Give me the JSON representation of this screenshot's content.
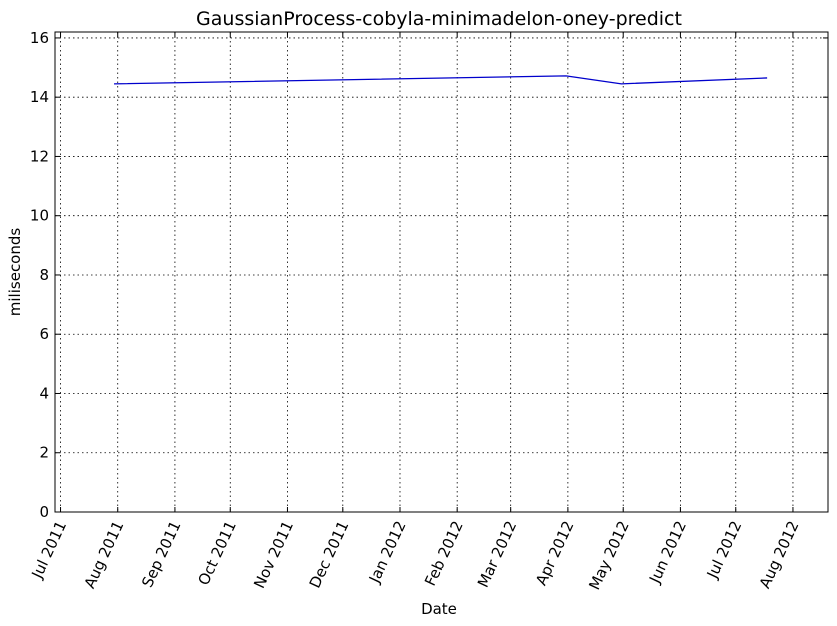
{
  "chart_data": {
    "type": "line",
    "title": "GaussianProcess-cobyla-minimadelon-oney-predict",
    "xlabel": "Date",
    "ylabel": "miliseconds",
    "grid": true,
    "ylim": [
      0,
      16.2
    ],
    "xlim": [
      "2011-06-28",
      "2012-08-20"
    ],
    "x_ticks": [
      {
        "date": "2011-07-01",
        "label": "Jul 2011"
      },
      {
        "date": "2011-08-01",
        "label": "Aug 2011"
      },
      {
        "date": "2011-09-01",
        "label": "Sep 2011"
      },
      {
        "date": "2011-10-01",
        "label": "Oct 2011"
      },
      {
        "date": "2011-11-01",
        "label": "Nov 2011"
      },
      {
        "date": "2011-12-01",
        "label": "Dec 2011"
      },
      {
        "date": "2012-01-01",
        "label": "Jan 2012"
      },
      {
        "date": "2012-02-01",
        "label": "Feb 2012"
      },
      {
        "date": "2012-03-01",
        "label": "Mar 2012"
      },
      {
        "date": "2012-04-01",
        "label": "Apr 2012"
      },
      {
        "date": "2012-05-01",
        "label": "May 2012"
      },
      {
        "date": "2012-06-01",
        "label": "Jun 2012"
      },
      {
        "date": "2012-07-01",
        "label": "Jul 2012"
      },
      {
        "date": "2012-08-01",
        "label": "Aug 2012"
      }
    ],
    "y_ticks": [
      0,
      2,
      4,
      6,
      8,
      10,
      12,
      14,
      16
    ],
    "series": [
      {
        "color": "#0000cc",
        "points": [
          {
            "x": "2011-07-30",
            "y": 14.45
          },
          {
            "x": "2012-03-31",
            "y": 14.72
          },
          {
            "x": "2012-04-30",
            "y": 14.45
          },
          {
            "x": "2012-07-18",
            "y": 14.65
          }
        ]
      }
    ]
  }
}
